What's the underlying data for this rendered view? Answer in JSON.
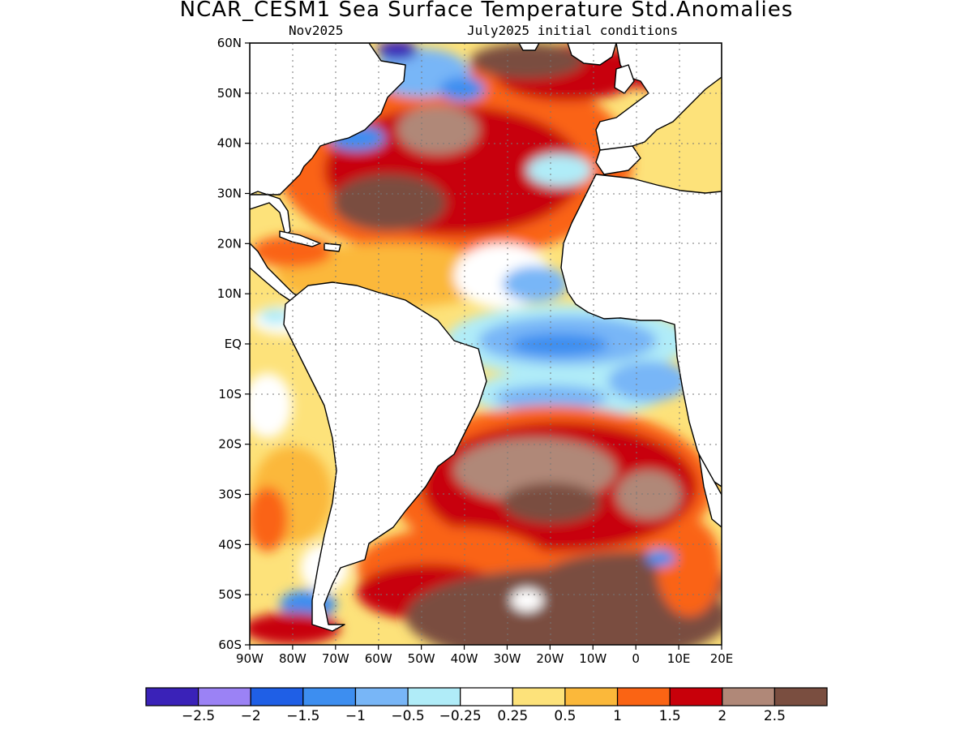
{
  "title": "NCAR_CESM1 Sea Surface Temperature Std.Anomalies",
  "subtitle_left": "Nov2025",
  "subtitle_right": "July2025 initial conditions",
  "map": {
    "lon_range": [
      -90,
      20
    ],
    "lat_range": [
      -60,
      60
    ],
    "lat_ticks": [
      "60N",
      "50N",
      "40N",
      "30N",
      "20N",
      "10N",
      "EQ",
      "10S",
      "20S",
      "30S",
      "40S",
      "50S",
      "60S"
    ],
    "lon_ticks": [
      "90W",
      "80W",
      "70W",
      "60W",
      "50W",
      "40W",
      "30W",
      "20W",
      "10W",
      "0",
      "10E",
      "20E"
    ],
    "gridlines": "dotted"
  },
  "colorbar": {
    "colors": [
      "#3a22b8",
      "#9b82f5",
      "#1f5fe6",
      "#3d8ef0",
      "#78b6f7",
      "#b0ecf8",
      "#ffffff",
      "#fde27a",
      "#fbb83a",
      "#fa6414",
      "#c8000a",
      "#b08878",
      "#7a4e40"
    ],
    "labels": [
      "−2.5",
      "−2",
      "−1.5",
      "−1",
      "−0.5",
      "−0.25",
      "0.25",
      "0.5",
      "1",
      "1.5",
      "2",
      "2.5"
    ]
  }
}
